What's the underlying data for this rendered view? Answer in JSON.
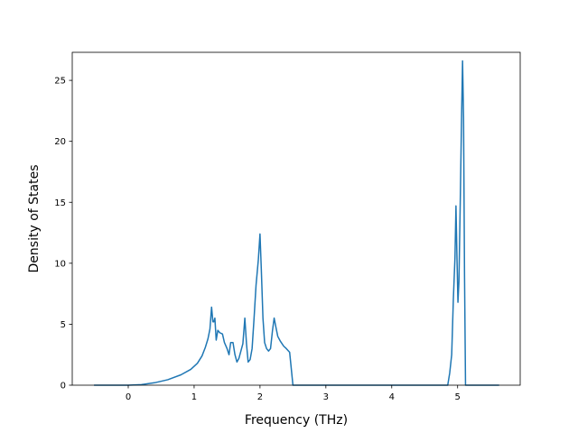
{
  "chart_data": {
    "type": "line",
    "title": "",
    "xlabel": "Frequency (THz)",
    "ylabel": "Density of States",
    "xlim": [
      -0.85,
      5.95
    ],
    "ylim": [
      0,
      27.3
    ],
    "xticks": [
      0,
      1,
      2,
      3,
      4,
      5
    ],
    "yticks": [
      0,
      5,
      10,
      15,
      20,
      25
    ],
    "grid": false,
    "legend": "none",
    "series": [
      {
        "color": "#1f77b4",
        "points": [
          [
            -0.52,
            0
          ],
          [
            -0.3,
            0
          ],
          [
            0,
            0
          ],
          [
            0.2,
            0.05
          ],
          [
            0.4,
            0.2
          ],
          [
            0.6,
            0.45
          ],
          [
            0.8,
            0.85
          ],
          [
            0.95,
            1.3
          ],
          [
            1.05,
            1.8
          ],
          [
            1.12,
            2.4
          ],
          [
            1.17,
            3.1
          ],
          [
            1.21,
            3.8
          ],
          [
            1.24,
            4.6
          ],
          [
            1.265,
            6.4
          ],
          [
            1.285,
            5.2
          ],
          [
            1.3,
            5.2
          ],
          [
            1.315,
            5.5
          ],
          [
            1.335,
            3.7
          ],
          [
            1.36,
            4.5
          ],
          [
            1.39,
            4.3
          ],
          [
            1.43,
            4.2
          ],
          [
            1.46,
            3.5
          ],
          [
            1.5,
            3.0
          ],
          [
            1.53,
            2.5
          ],
          [
            1.555,
            3.5
          ],
          [
            1.59,
            3.5
          ],
          [
            1.62,
            2.5
          ],
          [
            1.65,
            1.9
          ],
          [
            1.68,
            2.2
          ],
          [
            1.71,
            2.8
          ],
          [
            1.74,
            3.4
          ],
          [
            1.77,
            5.5
          ],
          [
            1.795,
            3.4
          ],
          [
            1.82,
            1.9
          ],
          [
            1.85,
            2.1
          ],
          [
            1.88,
            3.0
          ],
          [
            1.91,
            5.5
          ],
          [
            1.94,
            8.2
          ],
          [
            1.975,
            10.3
          ],
          [
            2.0,
            12.4
          ],
          [
            2.02,
            9.5
          ],
          [
            2.045,
            5.5
          ],
          [
            2.07,
            3.5
          ],
          [
            2.1,
            3.0
          ],
          [
            2.13,
            2.8
          ],
          [
            2.16,
            3.0
          ],
          [
            2.19,
            4.5
          ],
          [
            2.215,
            5.5
          ],
          [
            2.24,
            4.8
          ],
          [
            2.27,
            4.0
          ],
          [
            2.31,
            3.6
          ],
          [
            2.36,
            3.2
          ],
          [
            2.4,
            3.0
          ],
          [
            2.45,
            2.7
          ],
          [
            2.5,
            0
          ],
          [
            2.8,
            0
          ],
          [
            3.5,
            0
          ],
          [
            4.2,
            0
          ],
          [
            4.85,
            0
          ],
          [
            4.88,
            1.0
          ],
          [
            4.91,
            2.5
          ],
          [
            4.935,
            7.0
          ],
          [
            4.96,
            10.5
          ],
          [
            4.975,
            14.7
          ],
          [
            4.99,
            10.5
          ],
          [
            5.005,
            6.8
          ],
          [
            5.02,
            8.5
          ],
          [
            5.04,
            15.0
          ],
          [
            5.06,
            22.0
          ],
          [
            5.075,
            26.6
          ],
          [
            5.09,
            22.0
          ],
          [
            5.105,
            9.0
          ],
          [
            5.12,
            0
          ],
          [
            5.4,
            0
          ],
          [
            5.63,
            0
          ]
        ]
      }
    ]
  }
}
